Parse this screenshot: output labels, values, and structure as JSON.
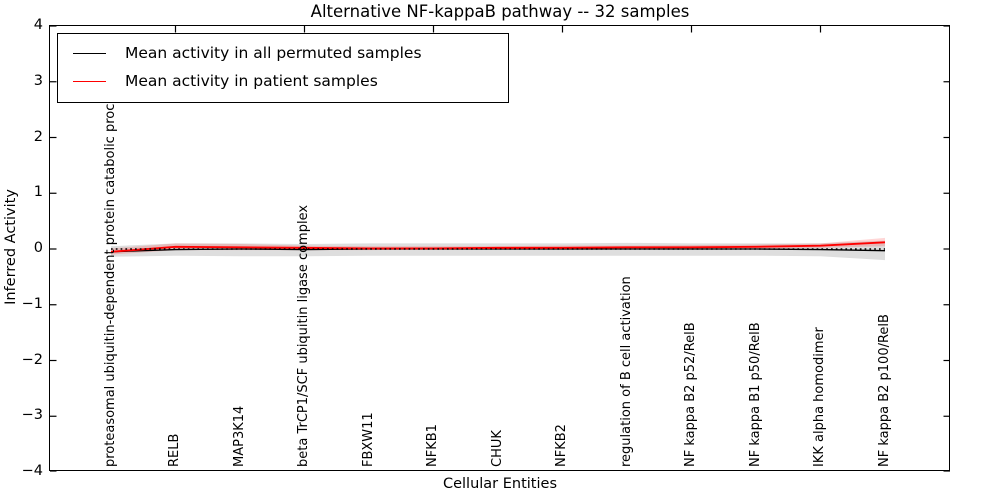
{
  "chart_data": {
    "type": "line",
    "title": "Alternative NF-kappaB pathway -- 32 samples",
    "xlabel": "Cellular Entities",
    "ylabel": "Inferred Activity",
    "ylim": [
      -4,
      4
    ],
    "yticks": [
      4,
      3,
      2,
      1,
      0,
      -1,
      -2,
      -3,
      -4
    ],
    "x_major_tick_indices": [
      1,
      3,
      5,
      7,
      9,
      11
    ],
    "grid": false,
    "legend_position": "upper left",
    "categories": [
      "proteasomal ubiquitin-dependent protein catabolic process",
      "RELB",
      "MAP3K14",
      "beta TrCP1/SCF ubiquitin ligase complex",
      "FBXW11",
      "NFKB1",
      "CHUK",
      "NFKB2",
      "regulation of B cell activation",
      "NF kappa B2 p52/RelB",
      "NF kappa B1 p50/RelB",
      "IKK alpha homodimer",
      "NF kappa B2 p100/RelB"
    ],
    "series": [
      {
        "name": "Mean activity in all permuted samples",
        "color": "#000000",
        "values": [
          -0.05,
          -0.01,
          0.0,
          -0.01,
          0.0,
          0.0,
          0.0,
          0.0,
          0.0,
          0.0,
          0.0,
          -0.01,
          -0.03
        ]
      },
      {
        "name": "Mean activity in patient samples",
        "color": "#ff0000",
        "values": [
          -0.05,
          0.04,
          0.03,
          0.02,
          0.01,
          0.01,
          0.02,
          0.02,
          0.03,
          0.03,
          0.04,
          0.06,
          0.12
        ]
      }
    ],
    "bands": [
      {
        "name": "permuted-std-band",
        "color": "rgba(0,0,0,0.13)",
        "upper": [
          0.05,
          0.1,
          0.1,
          0.09,
          0.1,
          0.1,
          0.1,
          0.1,
          0.11,
          0.1,
          0.1,
          0.1,
          0.15
        ],
        "lower": [
          -0.14,
          -0.12,
          -0.13,
          -0.13,
          -0.12,
          -0.12,
          -0.12,
          -0.12,
          -0.12,
          -0.12,
          -0.12,
          -0.13,
          -0.2
        ]
      },
      {
        "name": "patient-std-band",
        "color": "rgba(255,0,0,0.16)",
        "upper": [
          0.01,
          0.1,
          0.09,
          0.06,
          0.05,
          0.05,
          0.05,
          0.06,
          0.06,
          0.07,
          0.08,
          0.1,
          0.2
        ],
        "lower": [
          -0.1,
          -0.02,
          -0.02,
          -0.02,
          -0.02,
          -0.01,
          -0.01,
          -0.01,
          0.0,
          0.0,
          0.01,
          0.02,
          0.05
        ]
      }
    ],
    "zero_line": {
      "style": "dotted",
      "color": "#000000",
      "y": 0
    }
  }
}
